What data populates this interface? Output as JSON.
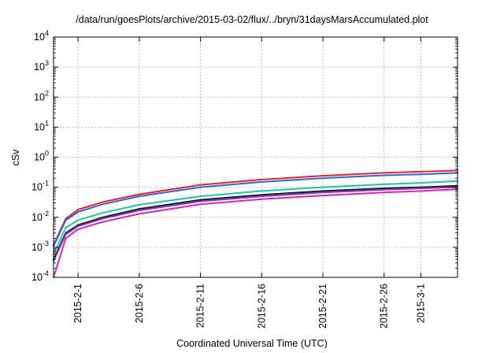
{
  "chart_data": {
    "type": "line",
    "title": "/data/run/goesPlots/archive/2015-03-02/flux/../bryn/31daysMarsAccumulated.plot",
    "xlabel": "Coordinated Universal Time (UTC)",
    "ylabel": "cSv",
    "y_scale": "log",
    "ylim": [
      0.0001,
      10000
    ],
    "xlim": [
      "2015-01-30",
      "2015-03-04"
    ],
    "grid": true,
    "y_ticks": [
      {
        "value": 0.0001,
        "base": "10",
        "exp": "-4"
      },
      {
        "value": 0.001,
        "base": "10",
        "exp": "-3"
      },
      {
        "value": 0.01,
        "base": "10",
        "exp": "-2"
      },
      {
        "value": 0.1,
        "base": "10",
        "exp": "-1"
      },
      {
        "value": 1,
        "base": "10",
        "exp": "0"
      },
      {
        "value": 10,
        "base": "10",
        "exp": "1"
      },
      {
        "value": 100,
        "base": "10",
        "exp": "2"
      },
      {
        "value": 1000,
        "base": "10",
        "exp": "3"
      },
      {
        "value": 10000,
        "base": "10",
        "exp": "4"
      }
    ],
    "x_ticks": [
      "2015-2-1",
      "2015-2-6",
      "2015-2-11",
      "2015-2-16",
      "2015-2-21",
      "2015-2-26",
      "2015-3-1"
    ],
    "x": [
      "2015-01-30",
      "2015-01-31",
      "2015-02-01",
      "2015-02-03",
      "2015-02-06",
      "2015-02-11",
      "2015-02-16",
      "2015-02-21",
      "2015-02-26",
      "2015-03-01",
      "2015-03-04"
    ],
    "series": [
      {
        "color": "#e8202a",
        "values": [
          0.0012,
          0.009,
          0.018,
          0.032,
          0.058,
          0.12,
          0.18,
          0.24,
          0.3,
          0.33,
          0.36
        ]
      },
      {
        "color": "#2a68d8",
        "values": [
          0.0011,
          0.008,
          0.015,
          0.027,
          0.05,
          0.1,
          0.15,
          0.2,
          0.25,
          0.27,
          0.3
        ]
      },
      {
        "color": "#22c4a8",
        "values": [
          0.0006,
          0.0045,
          0.008,
          0.014,
          0.026,
          0.05,
          0.075,
          0.1,
          0.125,
          0.14,
          0.16
        ]
      },
      {
        "color": "#1a1a2e",
        "values": [
          0.0004,
          0.003,
          0.0055,
          0.01,
          0.019,
          0.038,
          0.056,
          0.075,
          0.092,
          0.1,
          0.112
        ]
      },
      {
        "color": "#7a3fb0",
        "values": [
          0.00035,
          0.0027,
          0.005,
          0.009,
          0.017,
          0.034,
          0.05,
          0.067,
          0.083,
          0.092,
          0.1
        ]
      },
      {
        "color": "#e020b8",
        "values": [
          0.0001,
          0.002,
          0.004,
          0.007,
          0.013,
          0.027,
          0.04,
          0.053,
          0.067,
          0.075,
          0.085
        ]
      }
    ]
  }
}
